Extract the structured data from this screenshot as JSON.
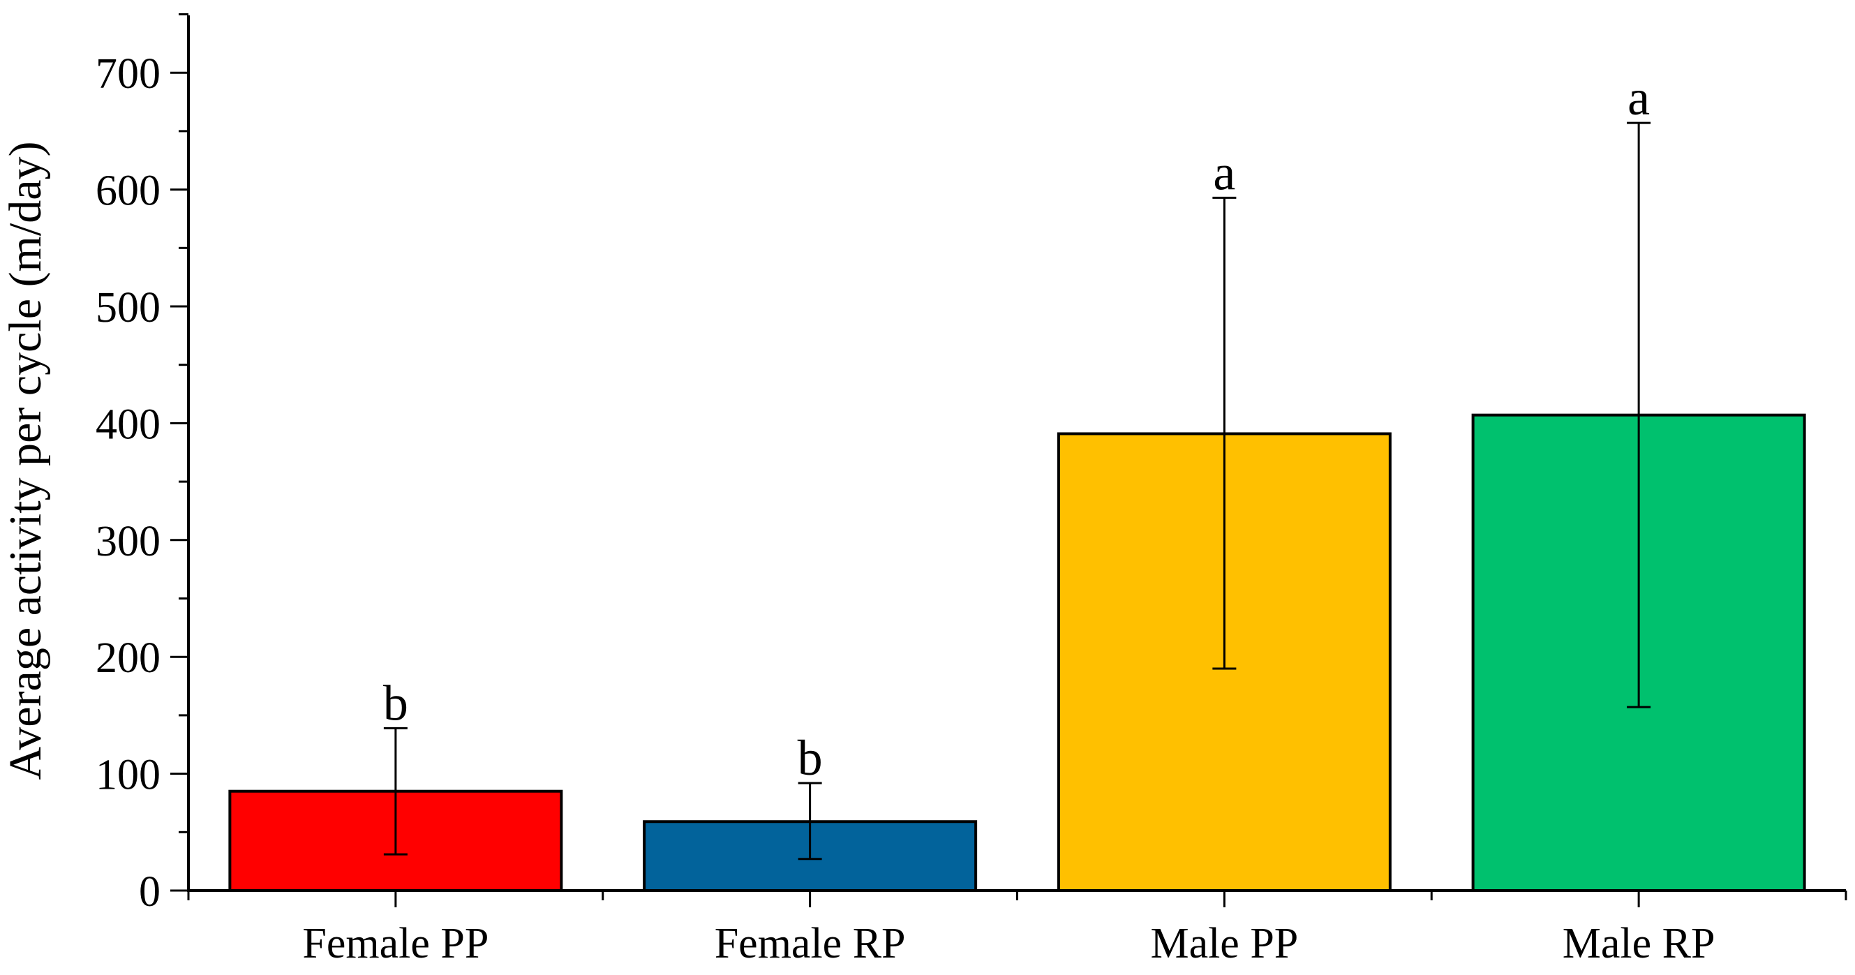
{
  "chart_data": {
    "type": "bar",
    "title": "",
    "xlabel": "",
    "ylabel": "Average activity per cycle (m/day)",
    "ylim": [
      0,
      750
    ],
    "yticks": [
      0,
      100,
      200,
      300,
      400,
      500,
      600,
      700
    ],
    "grid": false,
    "categories": [
      "Female PP",
      "Female RP",
      "Male PP",
      "Male RP"
    ],
    "values": [
      85,
      59,
      391,
      407
    ],
    "errors": [
      {
        "low": 31,
        "high": 139
      },
      {
        "low": 27,
        "high": 92
      },
      {
        "low": 190,
        "high": 593
      },
      {
        "low": 157,
        "high": 657
      }
    ],
    "significance_labels": [
      "b",
      "b",
      "a",
      "a"
    ],
    "colors": [
      "#ff0000",
      "#02639b",
      "#ffc000",
      "#00c16e"
    ]
  }
}
